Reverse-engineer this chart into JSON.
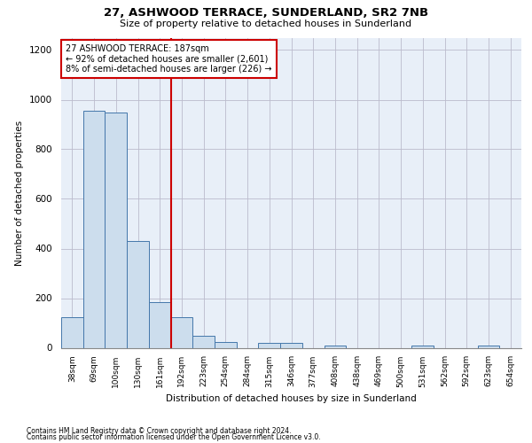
{
  "title": "27, ASHWOOD TERRACE, SUNDERLAND, SR2 7NB",
  "subtitle": "Size of property relative to detached houses in Sunderland",
  "xlabel": "Distribution of detached houses by size in Sunderland",
  "ylabel": "Number of detached properties",
  "footnote1": "Contains HM Land Registry data © Crown copyright and database right 2024.",
  "footnote2": "Contains public sector information licensed under the Open Government Licence v3.0.",
  "annotation_line1": "27 ASHWOOD TERRACE: 187sqm",
  "annotation_line2": "← 92% of detached houses are smaller (2,601)",
  "annotation_line3": "8% of semi-detached houses are larger (226) →",
  "red_line_index": 5,
  "categories": [
    "38sqm",
    "69sqm",
    "100sqm",
    "130sqm",
    "161sqm",
    "192sqm",
    "223sqm",
    "254sqm",
    "284sqm",
    "315sqm",
    "346sqm",
    "377sqm",
    "408sqm",
    "438sqm",
    "469sqm",
    "500sqm",
    "531sqm",
    "562sqm",
    "592sqm",
    "623sqm",
    "654sqm"
  ],
  "bar_values": [
    125,
    955,
    948,
    430,
    185,
    125,
    48,
    22,
    0,
    18,
    18,
    0,
    10,
    0,
    0,
    0,
    10,
    0,
    0,
    10,
    0
  ],
  "bar_color": "#ccdded",
  "bar_edge_color": "#4477aa",
  "red_line_color": "#cc0000",
  "annotation_box_edge": "#cc0000",
  "ax_facecolor": "#e8eff8",
  "background_color": "#ffffff",
  "grid_color": "#bbbbcc",
  "ylim": [
    0,
    1250
  ],
  "yticks": [
    0,
    200,
    400,
    600,
    800,
    1000,
    1200
  ]
}
